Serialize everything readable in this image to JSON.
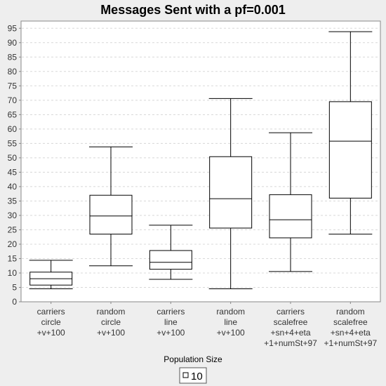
{
  "chart_data": {
    "type": "boxplot",
    "title": "Messages Sent with a pf=0.001",
    "xlabel": "",
    "ylabel": "",
    "ylim": [
      0,
      97.5
    ],
    "yticks": [
      0,
      5,
      10,
      15,
      20,
      25,
      30,
      35,
      40,
      45,
      50,
      55,
      60,
      65,
      70,
      75,
      80,
      85,
      90,
      95
    ],
    "grid": true,
    "categories": [
      [
        "carriers",
        "circle",
        "+v+100"
      ],
      [
        "random",
        "circle",
        "+v+100"
      ],
      [
        "carriers",
        "line",
        "+v+100"
      ],
      [
        "random",
        "line",
        "+v+100"
      ],
      [
        "carriers",
        "scalefree",
        "+sn+4+eta",
        "+1+numSt+97"
      ],
      [
        "random",
        "scalefree",
        "+sn+4+eta",
        "+1+numSt+97"
      ]
    ],
    "series": [
      {
        "name": "10",
        "boxes": [
          {
            "min": 4.5,
            "q1": 5.8,
            "median": 8.0,
            "q3": 10.3,
            "max": 14.4
          },
          {
            "min": 12.5,
            "q1": 23.5,
            "median": 29.8,
            "q3": 37.0,
            "max": 53.8
          },
          {
            "min": 7.8,
            "q1": 11.3,
            "median": 13.7,
            "q3": 17.8,
            "max": 26.6
          },
          {
            "min": 4.5,
            "q1": 25.6,
            "median": 35.8,
            "q3": 50.4,
            "max": 70.6
          },
          {
            "min": 10.5,
            "q1": 22.2,
            "median": 28.5,
            "q3": 37.2,
            "max": 58.7
          },
          {
            "min": 23.5,
            "q1": 36.0,
            "median": 55.8,
            "q3": 69.5,
            "max": 93.8
          }
        ]
      }
    ],
    "legend": {
      "title": "Population Size",
      "placement": "bottom-center"
    }
  }
}
